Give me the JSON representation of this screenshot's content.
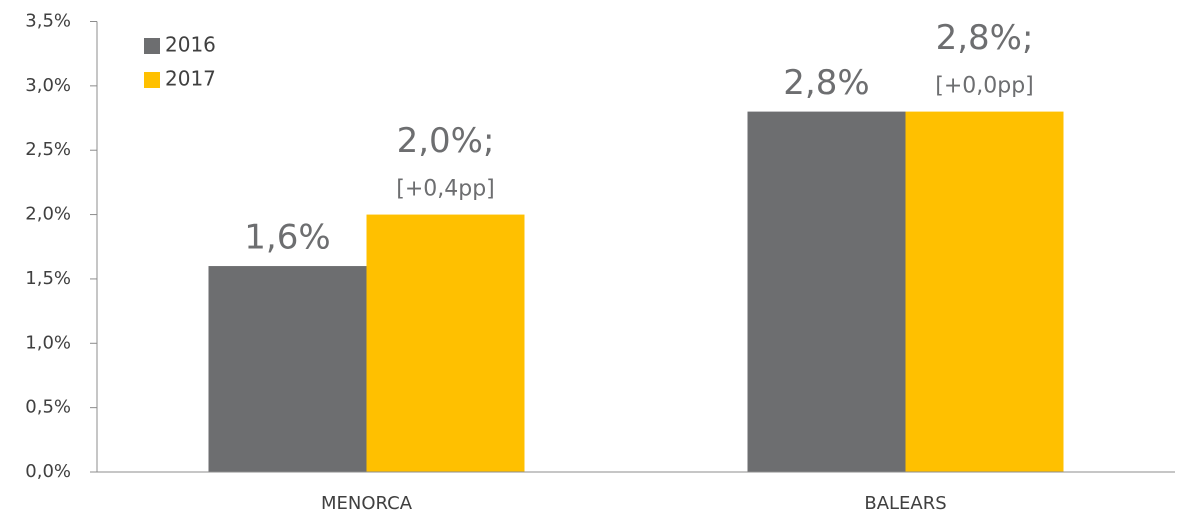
{
  "chart_data": {
    "type": "bar",
    "categories": [
      "MENORCA",
      "BALEARS"
    ],
    "series": [
      {
        "name": "2016",
        "color": "#6d6e70",
        "values": [
          1.6,
          2.8
        ],
        "value_labels": [
          "1,6%",
          "2,8%"
        ]
      },
      {
        "name": "2017",
        "color": "#ffc000",
        "values": [
          2.0,
          2.8
        ],
        "value_labels": [
          "2,0%;",
          "2,8%;"
        ],
        "annotations": [
          "[+0,4pp]",
          "[+0,0pp]"
        ]
      }
    ],
    "ylim": [
      0,
      3.5
    ],
    "yticks": [
      {
        "value": 0,
        "label": "0,0%"
      },
      {
        "value": 0.5,
        "label": "0,5%"
      },
      {
        "value": 1,
        "label": "1,0%"
      },
      {
        "value": 1.5,
        "label": "1,5%"
      },
      {
        "value": 2,
        "label": "2,0%"
      },
      {
        "value": 2.5,
        "label": "2,5%"
      },
      {
        "value": 3,
        "label": "3,0%"
      },
      {
        "value": 3.5,
        "label": "3,5%"
      }
    ],
    "grid": false,
    "legend": "top-left"
  }
}
